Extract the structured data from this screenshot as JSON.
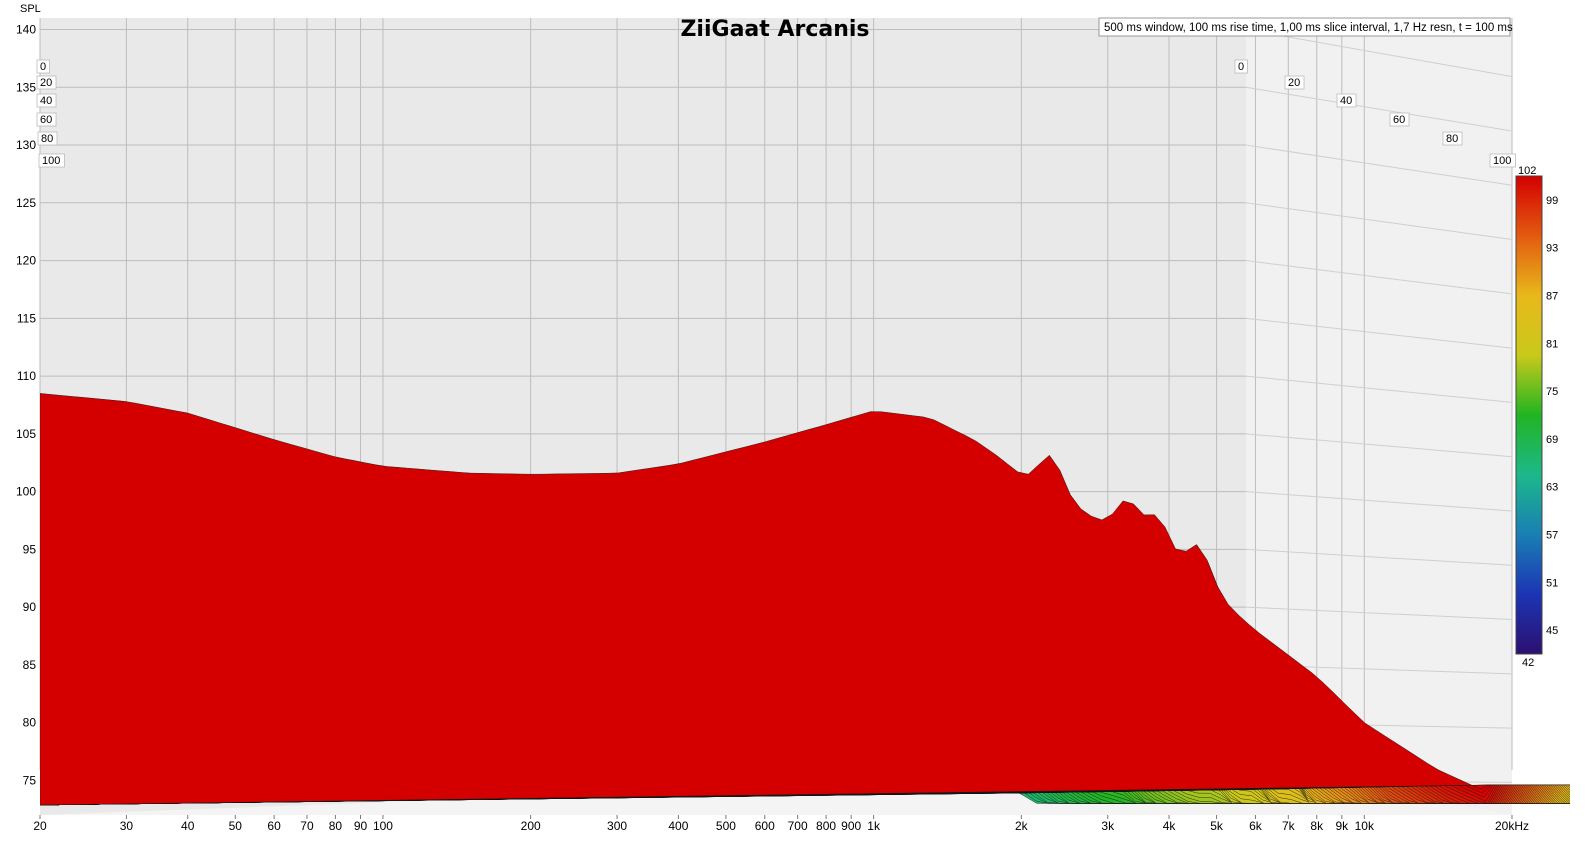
{
  "chart_data": {
    "type": "waterfall",
    "title": "ZiiGaat Arcanis",
    "info": "500 ms window, 100 ms rise time, 1,00 ms slice interval, 1,7 Hz resn, t = 100 ms",
    "ylabel": "SPL",
    "xunit": "kHz",
    "ylim": [
      72,
      141
    ],
    "xlim": [
      20,
      20000
    ],
    "x_scale": "log",
    "y_ticks": [
      140,
      135,
      130,
      125,
      120,
      115,
      110,
      105,
      100,
      95,
      90,
      85,
      80,
      75
    ],
    "x_ticks": [
      {
        "v": 20,
        "label": "20"
      },
      {
        "v": 30,
        "label": "30"
      },
      {
        "v": 40,
        "label": "40"
      },
      {
        "v": 50,
        "label": "50"
      },
      {
        "v": 60,
        "label": "60"
      },
      {
        "v": 70,
        "label": "70"
      },
      {
        "v": 80,
        "label": "80"
      },
      {
        "v": 90,
        "label": "90"
      },
      {
        "v": 100,
        "label": "100"
      },
      {
        "v": 200,
        "label": "200"
      },
      {
        "v": 300,
        "label": "300"
      },
      {
        "v": 400,
        "label": "400"
      },
      {
        "v": 500,
        "label": "500"
      },
      {
        "v": 600,
        "label": "600"
      },
      {
        "v": 700,
        "label": "700"
      },
      {
        "v": 800,
        "label": "800"
      },
      {
        "v": 900,
        "label": "900"
      },
      {
        "v": 1000,
        "label": "1k"
      },
      {
        "v": 2000,
        "label": "2k"
      },
      {
        "v": 3000,
        "label": "3k"
      },
      {
        "v": 4000,
        "label": "4k"
      },
      {
        "v": 5000,
        "label": "5k"
      },
      {
        "v": 6000,
        "label": "6k"
      },
      {
        "v": 7000,
        "label": "7k"
      },
      {
        "v": 8000,
        "label": "8k"
      },
      {
        "v": 9000,
        "label": "9k"
      },
      {
        "v": 10000,
        "label": "10k"
      },
      {
        "v": 20000,
        "label": "20kHz"
      }
    ],
    "time_ticks_left": [
      "0",
      "20",
      "40",
      "60",
      "80",
      "100"
    ],
    "time_ticks_right": [
      "0",
      "20",
      "40",
      "60",
      "80",
      "100"
    ],
    "colorbar": {
      "min": 42,
      "max": 102,
      "labels": [
        "102",
        "99",
        "93",
        "87",
        "81",
        "75",
        "69",
        "63",
        "57",
        "51",
        "45",
        "42"
      ],
      "stops": [
        "#d40000",
        "#e25a10",
        "#e8b81a",
        "#c9c91a",
        "#22b422",
        "#1cb88a",
        "#1a7fb4",
        "#1c34b4",
        "#2c1070"
      ]
    },
    "front_curve": {
      "x": [
        20,
        30,
        40,
        60,
        80,
        100,
        150,
        200,
        300,
        400,
        600,
        800,
        1000,
        1300,
        1600,
        1800,
        2000,
        2500,
        3000,
        4000,
        5000,
        6000,
        8000,
        10000,
        14000,
        20000
      ],
      "y": [
        108.5,
        107.8,
        106.8,
        104.5,
        103.0,
        102.2,
        101.6,
        101.5,
        101.6,
        102.4,
        104.3,
        105.8,
        107.0,
        106.4,
        104.5,
        103.0,
        101.4,
        99.0,
        97.0,
        94.0,
        91.0,
        88.0,
        84.0,
        80.0,
        76.0,
        73.0
      ]
    },
    "ridges": [
      {
        "x": 2300,
        "y": 104
      },
      {
        "x": 3300,
        "y": 105.5
      },
      {
        "x": 3800,
        "y": 104.5
      },
      {
        "x": 4600,
        "y": 105
      }
    ],
    "slice_count": 100
  }
}
